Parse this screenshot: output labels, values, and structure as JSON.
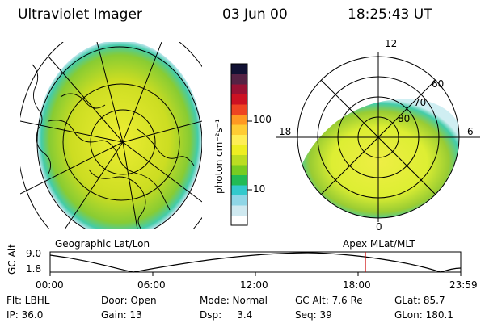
{
  "header": {
    "title": "Ultraviolet Imager",
    "date": "03 Jun 00",
    "time": "18:25:43 UT"
  },
  "colorbar": {
    "label": "photon cm⁻²s⁻¹",
    "ticks": [
      "100",
      "10"
    ],
    "colors": [
      "#ffffff",
      "#cfe9f0",
      "#8fd6e6",
      "#33c9cc",
      "#22bb55",
      "#77cc22",
      "#bbdd22",
      "#eeee22",
      "#ffee55",
      "#ffcc33",
      "#ff9922",
      "#ee4422",
      "#cc1122",
      "#991133",
      "#552244",
      "#111133"
    ]
  },
  "left_panel": {
    "caption": "Geographic Lat/Lon"
  },
  "right_panel": {
    "caption": "Apex MLat/MLT",
    "mlt_labels": {
      "top": "12",
      "left": "18",
      "right": "6",
      "bottom": "0"
    },
    "lat_labels": [
      "60",
      "70",
      "80"
    ]
  },
  "timeline": {
    "ylabel": "GC Alt",
    "yticks": [
      "9.0",
      "1.8"
    ],
    "xticks": [
      "00:00",
      "06:00",
      "12:00",
      "18:00",
      "23:59"
    ],
    "marker_time_hours": 18.43,
    "marker_color": "#cc0000"
  },
  "footer": {
    "col1": [
      "Flt: LBHL",
      "IP: 36.0"
    ],
    "col2": [
      "Door: Open",
      "Gain: 13"
    ],
    "col3": [
      "Mode: Normal",
      "Dsp:     3.4"
    ],
    "col4": [
      "GC Alt: 7.6 Re",
      "Seq: 39"
    ],
    "col5": [
      "GLat: 85.7",
      "GLon: 180.1"
    ]
  }
}
